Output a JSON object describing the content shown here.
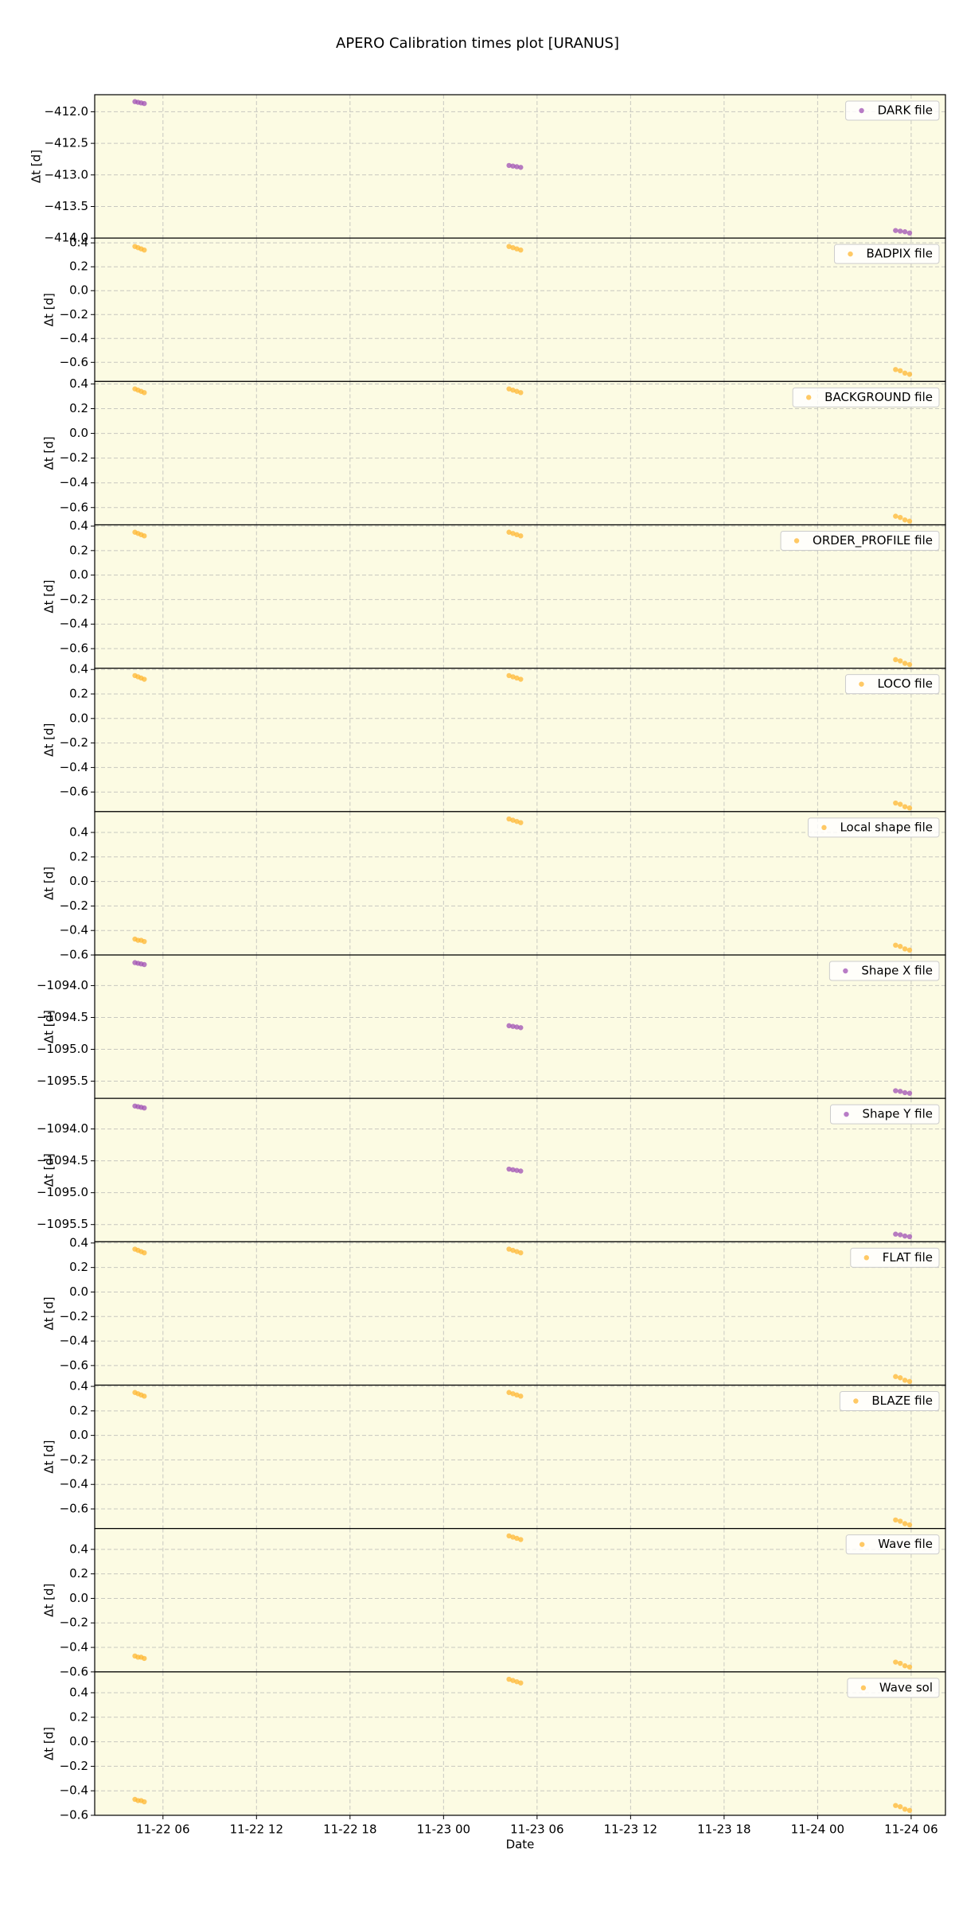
{
  "title": "APERO Calibration times plot [URANUS]",
  "chart_data": [
    {
      "type": "scatter",
      "ylabel": "Δt [d]",
      "legend": "upper right",
      "xlim": [
        1.62,
        56.2
      ],
      "ylim": [
        -414.0,
        -411.73
      ],
      "yticks": [
        {
          "value": -414,
          "label": "−414.0"
        },
        {
          "value": -413.5,
          "label": "−413.5"
        },
        {
          "value": -413,
          "label": "−413.0"
        },
        {
          "value": -412.5,
          "label": "−412.5"
        },
        {
          "value": -412,
          "label": "−412.0"
        }
      ],
      "series": [
        {
          "name": "DARK file",
          "color": "#a050b4",
          "x": [
            4.2,
            4.4,
            4.6,
            4.8,
            28.2,
            28.45,
            28.7,
            28.95,
            53.0,
            53.3,
            53.6,
            53.9
          ],
          "values": [
            -411.84,
            -411.85,
            -411.86,
            -411.87,
            -412.85,
            -412.86,
            -412.87,
            -412.88,
            -413.88,
            -413.89,
            -413.9,
            -413.92
          ]
        }
      ]
    },
    {
      "type": "scatter",
      "ylabel": "Δt [d]",
      "legend": "upper right",
      "xlim": [
        1.62,
        56.2
      ],
      "ylim": [
        -0.76,
        0.44
      ],
      "yticks": [
        {
          "value": -0.6,
          "label": "−0.6"
        },
        {
          "value": -0.4,
          "label": "−0.4"
        },
        {
          "value": -0.2,
          "label": "−0.2"
        },
        {
          "value": 0,
          "label": "0.0"
        },
        0.2,
        0.4
      ],
      "series": [
        {
          "name": "BADPIX file",
          "color": "#ffb732",
          "x": [
            4.2,
            4.4,
            4.6,
            4.8,
            28.2,
            28.45,
            28.7,
            28.95,
            53.0,
            53.3,
            53.6,
            53.9
          ],
          "values": [
            0.37,
            0.36,
            0.35,
            0.34,
            0.37,
            0.36,
            0.35,
            0.34,
            -0.66,
            -0.67,
            -0.69,
            -0.7
          ]
        }
      ]
    },
    {
      "type": "scatter",
      "ylabel": "Δt [d]",
      "legend": "upper right",
      "xlim": [
        1.62,
        56.2
      ],
      "ylim": [
        -0.74,
        0.42
      ],
      "yticks": [
        {
          "value": -0.6,
          "label": "−0.6"
        },
        {
          "value": -0.4,
          "label": "−0.4"
        },
        {
          "value": -0.2,
          "label": "−0.2"
        },
        {
          "value": 0,
          "label": "0.0"
        },
        0.2,
        0.4
      ],
      "series": [
        {
          "name": "BACKGROUND file",
          "color": "#ffb732",
          "x": [
            4.2,
            4.4,
            4.6,
            4.8,
            28.2,
            28.45,
            28.7,
            28.95,
            53.0,
            53.3,
            53.6,
            53.9
          ],
          "values": [
            0.36,
            0.35,
            0.34,
            0.33,
            0.36,
            0.35,
            0.34,
            0.33,
            -0.67,
            -0.68,
            -0.7,
            -0.71
          ]
        }
      ]
    },
    {
      "type": "scatter",
      "ylabel": "Δt [d]",
      "legend": "upper right",
      "xlim": [
        1.62,
        56.2
      ],
      "ylim": [
        -0.76,
        0.41
      ],
      "yticks": [
        {
          "value": -0.6,
          "label": "−0.6"
        },
        {
          "value": -0.4,
          "label": "−0.4"
        },
        {
          "value": -0.2,
          "label": "−0.2"
        },
        {
          "value": 0,
          "label": "0.0"
        },
        0.2,
        0.4
      ],
      "series": [
        {
          "name": "ORDER_PROFILE file",
          "color": "#ffb732",
          "x": [
            4.2,
            4.4,
            4.6,
            4.8,
            28.2,
            28.45,
            28.7,
            28.95,
            53.0,
            53.3,
            53.6,
            53.9
          ],
          "values": [
            0.35,
            0.34,
            0.33,
            0.32,
            0.35,
            0.34,
            0.33,
            0.32,
            -0.69,
            -0.7,
            -0.72,
            -0.73
          ]
        }
      ]
    },
    {
      "type": "scatter",
      "ylabel": "Δt [d]",
      "legend": "upper right",
      "xlim": [
        1.62,
        56.2
      ],
      "ylim": [
        -0.76,
        0.41
      ],
      "yticks": [
        {
          "value": -0.6,
          "label": "−0.6"
        },
        {
          "value": -0.4,
          "label": "−0.4"
        },
        {
          "value": -0.2,
          "label": "−0.2"
        },
        {
          "value": 0,
          "label": "0.0"
        },
        0.2,
        0.4
      ],
      "series": [
        {
          "name": "LOCO file",
          "color": "#ffb732",
          "x": [
            4.2,
            4.4,
            4.6,
            4.8,
            28.2,
            28.45,
            28.7,
            28.95,
            53.0,
            53.3,
            53.6,
            53.9
          ],
          "values": [
            0.35,
            0.34,
            0.33,
            0.32,
            0.35,
            0.34,
            0.33,
            0.32,
            -0.69,
            -0.7,
            -0.72,
            -0.73
          ]
        }
      ]
    },
    {
      "type": "scatter",
      "ylabel": "Δt [d]",
      "legend": "upper right",
      "xlim": [
        1.62,
        56.2
      ],
      "ylim": [
        -0.6,
        0.57
      ],
      "yticks": [
        {
          "value": -0.6,
          "label": "−0.6"
        },
        {
          "value": -0.4,
          "label": "−0.4"
        },
        {
          "value": -0.2,
          "label": "−0.2"
        },
        {
          "value": 0,
          "label": "0.0"
        },
        0.2,
        0.4
      ],
      "series": [
        {
          "name": "Local shape file",
          "color": "#ffb732",
          "x": [
            4.2,
            4.4,
            4.6,
            4.8,
            28.2,
            28.45,
            28.7,
            28.95,
            53.0,
            53.3,
            53.6,
            53.9
          ],
          "values": [
            -0.47,
            -0.48,
            -0.48,
            -0.49,
            0.51,
            0.5,
            0.49,
            0.48,
            -0.52,
            -0.53,
            -0.55,
            -0.56
          ]
        }
      ]
    },
    {
      "type": "scatter",
      "ylabel": "Δt [d]",
      "legend": "upper right",
      "xlim": [
        1.62,
        56.2
      ],
      "ylim": [
        -1095.77,
        -1093.52
      ],
      "yticks": [
        {
          "value": -1095.5,
          "label": "−1095.5"
        },
        {
          "value": -1095,
          "label": "−1095.0"
        },
        {
          "value": -1094.5,
          "label": "−1094.5"
        },
        {
          "value": -1094,
          "label": "−1094.0"
        }
      ],
      "series": [
        {
          "name": "Shape X file",
          "color": "#a050b4",
          "x": [
            4.2,
            4.4,
            4.6,
            4.8,
            28.2,
            28.45,
            28.7,
            28.95,
            53.0,
            53.3,
            53.6,
            53.9
          ],
          "values": [
            -1093.64,
            -1093.65,
            -1093.66,
            -1093.67,
            -1094.63,
            -1094.64,
            -1094.65,
            -1094.66,
            -1095.65,
            -1095.66,
            -1095.68,
            -1095.69
          ]
        }
      ]
    },
    {
      "type": "scatter",
      "ylabel": "Δt [d]",
      "legend": "upper right",
      "xlim": [
        1.62,
        56.2
      ],
      "ylim": [
        -1095.77,
        -1093.52
      ],
      "yticks": [
        {
          "value": -1095.5,
          "label": "−1095.5"
        },
        {
          "value": -1095,
          "label": "−1095.0"
        },
        {
          "value": -1094.5,
          "label": "−1094.5"
        },
        {
          "value": -1094,
          "label": "−1094.0"
        }
      ],
      "series": [
        {
          "name": "Shape Y file",
          "color": "#a050b4",
          "x": [
            4.2,
            4.4,
            4.6,
            4.8,
            28.2,
            28.45,
            28.7,
            28.95,
            53.0,
            53.3,
            53.6,
            53.9
          ],
          "values": [
            -1093.64,
            -1093.65,
            -1093.66,
            -1093.67,
            -1094.63,
            -1094.64,
            -1094.65,
            -1094.66,
            -1095.65,
            -1095.66,
            -1095.68,
            -1095.69
          ]
        }
      ]
    },
    {
      "type": "scatter",
      "ylabel": "Δt [d]",
      "legend": "upper right",
      "xlim": [
        1.62,
        56.2
      ],
      "ylim": [
        -0.76,
        0.41
      ],
      "yticks": [
        {
          "value": -0.6,
          "label": "−0.6"
        },
        {
          "value": -0.4,
          "label": "−0.4"
        },
        {
          "value": -0.2,
          "label": "−0.2"
        },
        {
          "value": 0,
          "label": "0.0"
        },
        0.2,
        0.4
      ],
      "series": [
        {
          "name": "FLAT file",
          "color": "#ffb732",
          "x": [
            4.2,
            4.4,
            4.6,
            4.8,
            28.2,
            28.45,
            28.7,
            28.95,
            53.0,
            53.3,
            53.6,
            53.9
          ],
          "values": [
            0.35,
            0.34,
            0.33,
            0.32,
            0.35,
            0.34,
            0.33,
            0.32,
            -0.69,
            -0.7,
            -0.72,
            -0.73
          ]
        }
      ]
    },
    {
      "type": "scatter",
      "ylabel": "Δt [d]",
      "legend": "upper right",
      "xlim": [
        1.62,
        56.2
      ],
      "ylim": [
        -0.76,
        0.41
      ],
      "yticks": [
        {
          "value": -0.6,
          "label": "−0.6"
        },
        {
          "value": -0.4,
          "label": "−0.4"
        },
        {
          "value": -0.2,
          "label": "−0.2"
        },
        {
          "value": 0,
          "label": "0.0"
        },
        0.2,
        0.4
      ],
      "series": [
        {
          "name": "BLAZE file",
          "color": "#ffb732",
          "x": [
            4.2,
            4.4,
            4.6,
            4.8,
            28.2,
            28.45,
            28.7,
            28.95,
            53.0,
            53.3,
            53.6,
            53.9
          ],
          "values": [
            0.35,
            0.34,
            0.33,
            0.32,
            0.35,
            0.34,
            0.33,
            0.32,
            -0.69,
            -0.7,
            -0.72,
            -0.73
          ]
        }
      ]
    },
    {
      "type": "scatter",
      "ylabel": "Δt [d]",
      "legend": "upper right",
      "xlim": [
        1.62,
        56.2
      ],
      "ylim": [
        -0.6,
        0.57
      ],
      "yticks": [
        {
          "value": -0.6,
          "label": "−0.6"
        },
        {
          "value": -0.4,
          "label": "−0.4"
        },
        {
          "value": -0.2,
          "label": "−0.2"
        },
        {
          "value": 0,
          "label": "0.0"
        },
        0.2,
        0.4
      ],
      "series": [
        {
          "name": "Wave file",
          "color": "#ffb732",
          "x": [
            4.2,
            4.4,
            4.6,
            4.8,
            28.2,
            28.45,
            28.7,
            28.95,
            53.0,
            53.3,
            53.6,
            53.9
          ],
          "values": [
            -0.47,
            -0.48,
            -0.48,
            -0.49,
            0.51,
            0.5,
            0.49,
            0.48,
            -0.52,
            -0.53,
            -0.55,
            -0.56
          ]
        }
      ]
    },
    {
      "type": "scatter",
      "ylabel": "Δt [d]",
      "xlabel": "Date",
      "legend": "upper right",
      "xlim": [
        1.62,
        56.2
      ],
      "ylim": [
        -0.6,
        0.57
      ],
      "xticks": [
        {
          "value": 6,
          "label": "11-22 06"
        },
        {
          "value": 12,
          "label": "11-22 12"
        },
        {
          "value": 18,
          "label": "11-22 18"
        },
        {
          "value": 24,
          "label": "11-23 00"
        },
        {
          "value": 30,
          "label": "11-23 06"
        },
        {
          "value": 36,
          "label": "11-23 12"
        },
        {
          "value": 42,
          "label": "11-23 18"
        },
        {
          "value": 48,
          "label": "11-24 00"
        },
        {
          "value": 54,
          "label": "11-24 06"
        }
      ],
      "yticks": [
        {
          "value": -0.6,
          "label": "−0.6"
        },
        {
          "value": -0.4,
          "label": "−0.4"
        },
        {
          "value": -0.2,
          "label": "−0.2"
        },
        {
          "value": 0,
          "label": "0.0"
        },
        0.2,
        0.4
      ],
      "series": [
        {
          "name": "Wave sol",
          "color": "#ffb732",
          "x": [
            4.2,
            4.4,
            4.6,
            4.8,
            28.2,
            28.45,
            28.7,
            28.95,
            53.0,
            53.3,
            53.6,
            53.9
          ],
          "values": [
            -0.47,
            -0.48,
            -0.48,
            -0.49,
            0.51,
            0.5,
            0.49,
            0.48,
            -0.52,
            -0.53,
            -0.55,
            -0.56
          ]
        }
      ]
    }
  ]
}
